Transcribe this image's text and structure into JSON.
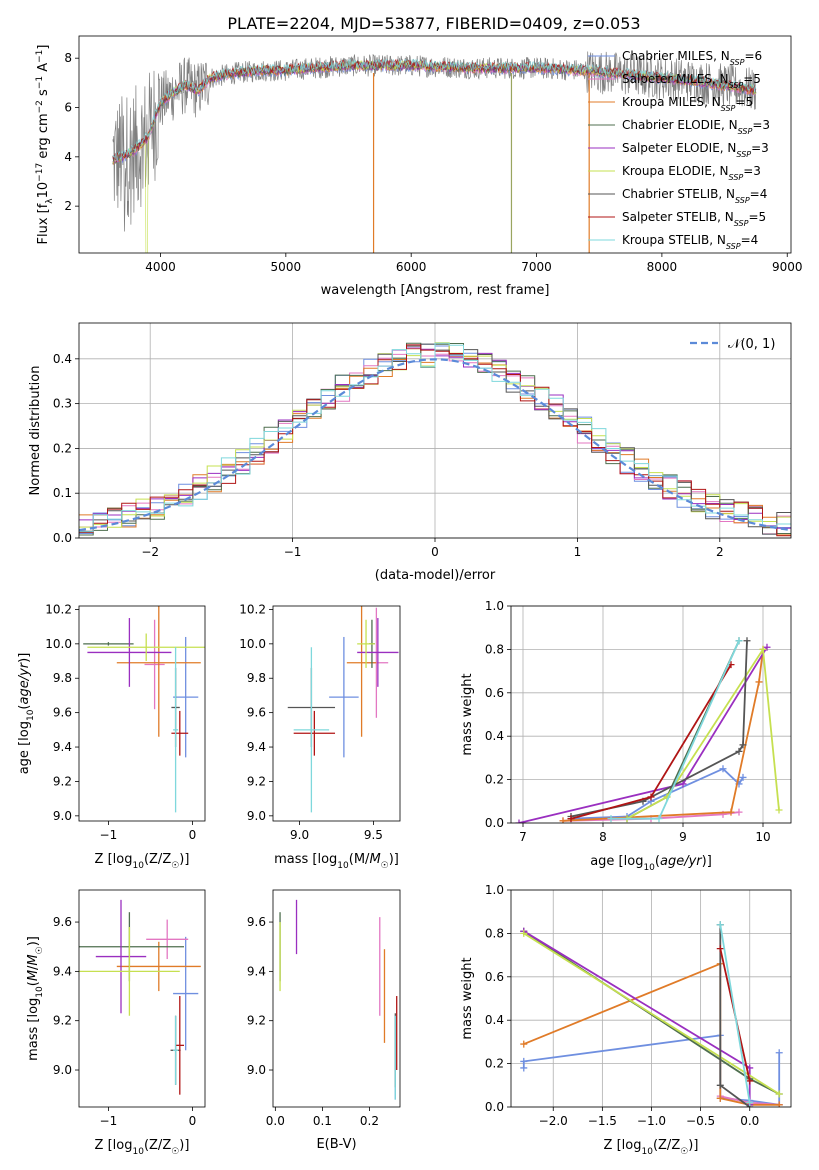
{
  "title": "PLATE=2204, MJD=53877, FIBERID=0409, z=0.053",
  "colors": {
    "Chabrier MILES": "#6f8fe0",
    "Salpeter MILES": "#e377c2",
    "Kroupa MILES": "#e07b28",
    "Chabrier ELODIE": "#4f6f4f",
    "Salpeter ELODIE": "#9a2fc0",
    "Kroupa ELODIE": "#c6e050",
    "Chabrier STELIB": "#555555",
    "Salpeter STELIB": "#b01515",
    "Kroupa STELIB": "#7fd8dc",
    "data": "#7f7f7f",
    "normal": "#5b8ad8"
  },
  "legend_models": [
    {
      "name": "Chabrier MILES",
      "nssp": "6"
    },
    {
      "name": "Salpeter MILES",
      "nssp": "5"
    },
    {
      "name": "Kroupa MILES",
      "nssp": "5"
    },
    {
      "name": "Chabrier ELODIE",
      "nssp": "3"
    },
    {
      "name": "Salpeter ELODIE",
      "nssp": "3"
    },
    {
      "name": "Kroupa ELODIE",
      "nssp": "3"
    },
    {
      "name": "Chabrier STELIB",
      "nssp": "4"
    },
    {
      "name": "Salpeter STELIB",
      "nssp": "5"
    },
    {
      "name": "Kroupa STELIB",
      "nssp": "4"
    }
  ],
  "chart_data": [
    {
      "id": "spectrum",
      "type": "line",
      "title": "PLATE=2204, MJD=53877, FIBERID=0409, z=0.053",
      "xlabel": "wavelength [Angstrom, rest frame]",
      "ylabel": "Flux [f_λ 10^-17 erg cm^-2 s^-1 A^-1]",
      "xlim": [
        3350,
        9030
      ],
      "ylim": [
        0.1,
        8.9
      ],
      "xticks": [
        4000,
        5000,
        6000,
        7000,
        8000,
        9000
      ],
      "yticks": [
        2,
        4,
        6,
        8
      ],
      "data_range": [
        3620,
        8750
      ],
      "continuum": {
        "x": [
          3620,
          3700,
          3800,
          3900,
          4000,
          4100,
          4200,
          4300,
          4400,
          4600,
          4800,
          5000,
          5200,
          5500,
          6000,
          6500,
          7000,
          7400,
          7800,
          8200,
          8500,
          8750
        ],
        "y": [
          3.9,
          4.0,
          4.3,
          4.8,
          6.2,
          6.6,
          6.9,
          6.7,
          7.2,
          7.4,
          7.5,
          7.5,
          7.6,
          7.7,
          7.7,
          7.6,
          7.6,
          7.5,
          7.3,
          7.1,
          6.9,
          6.7
        ]
      },
      "legend": "upper right"
    },
    {
      "id": "residual-histogram",
      "type": "step",
      "xlabel": "(data-model)/error",
      "ylabel": "Normed distribution",
      "xlim": [
        -2.5,
        2.5
      ],
      "ylim": [
        0,
        0.48
      ],
      "xticks": [
        -2,
        -1,
        0,
        1,
        2
      ],
      "yticks": [
        0.0,
        0.1,
        0.2,
        0.3,
        0.4
      ],
      "reference_curve": {
        "label": "𝒩(0, 1)",
        "mu": 0,
        "sigma": 1
      },
      "bin_width": 0.1,
      "grid": true
    },
    {
      "id": "age-vs-Z",
      "type": "errorbar",
      "xlabel": "Z [log10(Z/Z☉)]",
      "ylabel": "age [log10(age/yr)]",
      "xlim": [
        -1.35,
        0.15
      ],
      "ylim": [
        8.97,
        10.22
      ],
      "xticks": [
        -1,
        0
      ],
      "yticks": [
        9.0,
        9.2,
        9.4,
        9.6,
        9.8,
        10.0,
        10.2
      ],
      "points": [
        {
          "model": "Chabrier MILES",
          "x": -0.08,
          "y": 9.69,
          "xerr": 0.15,
          "yerr": 0.35
        },
        {
          "model": "Salpeter MILES",
          "x": -0.45,
          "y": 9.88,
          "xerr": 0.12,
          "yerr": 0.26
        },
        {
          "model": "Kroupa MILES",
          "x": -0.4,
          "y": 9.89,
          "xerr": 0.5,
          "yerr": 0.43
        },
        {
          "model": "Chabrier ELODIE",
          "x": -1.0,
          "y": 10.0,
          "xerr": 0.3,
          "yerr": 0.01
        },
        {
          "model": "Salpeter ELODIE",
          "x": -0.75,
          "y": 9.95,
          "xerr": 0.5,
          "yerr": 0.2
        },
        {
          "model": "Kroupa ELODIE",
          "x": -0.55,
          "y": 9.98,
          "xerr": 0.7,
          "yerr": 0.08
        },
        {
          "model": "Chabrier STELIB",
          "x": -0.2,
          "y": 9.63,
          "xerr": 0.05,
          "yerr": 0.23
        },
        {
          "model": "Salpeter STELIB",
          "x": -0.15,
          "y": 9.48,
          "xerr": 0.1,
          "yerr": 0.13
        },
        {
          "model": "Kroupa STELIB",
          "x": -0.2,
          "y": 9.5,
          "xerr": 0.03,
          "yerr": 0.48
        }
      ]
    },
    {
      "id": "age-vs-mass",
      "type": "errorbar",
      "xlabel": "mass [log10(M/M☉)]",
      "ylabel": "",
      "xlim": [
        8.82,
        9.68
      ],
      "ylim": [
        8.97,
        10.22
      ],
      "xticks": [
        9.0,
        9.5
      ],
      "yticks": [
        9.0,
        9.2,
        9.4,
        9.6,
        9.8,
        10.0,
        10.2
      ],
      "points": [
        {
          "model": "Chabrier MILES",
          "x": 9.3,
          "y": 9.69,
          "xerr": 0.1,
          "yerr": 0.35
        },
        {
          "model": "Salpeter MILES",
          "x": 9.52,
          "y": 9.89,
          "xerr": 0.08,
          "yerr": 0.32
        },
        {
          "model": "Kroupa MILES",
          "x": 9.42,
          "y": 9.89,
          "xerr": 0.1,
          "yerr": 0.43
        },
        {
          "model": "Chabrier ELODIE",
          "x": 9.49,
          "y": 10.0,
          "xerr": 0.02,
          "yerr": 0.14
        },
        {
          "model": "Salpeter ELODIE",
          "x": 9.53,
          "y": 9.95,
          "xerr": 0.14,
          "yerr": 0.2
        },
        {
          "model": "Kroupa ELODIE",
          "x": 9.45,
          "y": 10.0,
          "xerr": 0.06,
          "yerr": 0.14
        },
        {
          "model": "Chabrier STELIB",
          "x": 9.08,
          "y": 9.63,
          "xerr": 0.16,
          "yerr": 0.23
        },
        {
          "model": "Salpeter STELIB",
          "x": 9.1,
          "y": 9.48,
          "xerr": 0.14,
          "yerr": 0.13
        },
        {
          "model": "Kroupa STELIB",
          "x": 9.08,
          "y": 9.5,
          "xerr": 0.12,
          "yerr": 0.48
        }
      ]
    },
    {
      "id": "mass-weight-vs-age",
      "type": "line",
      "xlabel": "age [log10(age/yr)]",
      "ylabel": "mass weight",
      "xlim": [
        6.85,
        10.35
      ],
      "ylim": [
        0,
        1
      ],
      "xticks": [
        7,
        8,
        9,
        10
      ],
      "yticks": [
        0.0,
        0.2,
        0.4,
        0.6,
        0.8,
        1.0
      ],
      "grid": true,
      "series": [
        {
          "model": "Chabrier MILES",
          "x": [
            7.6,
            8.3,
            8.6,
            9.5,
            9.7,
            9.75
          ],
          "y": [
            0.02,
            0.03,
            0.1,
            0.25,
            0.18,
            0.21
          ]
        },
        {
          "model": "Salpeter MILES",
          "x": [
            7.5,
            8.6,
            9.5,
            9.7
          ],
          "y": [
            0.01,
            0.02,
            0.04,
            0.05
          ]
        },
        {
          "model": "Kroupa MILES",
          "x": [
            7.5,
            9.6,
            9.95,
            10.0
          ],
          "y": [
            0.01,
            0.05,
            0.65,
            0.8
          ]
        },
        {
          "model": "Chabrier ELODIE",
          "x": [
            8.3,
            8.8,
            9.7
          ],
          "y": [
            0.02,
            0.12,
            0.84
          ]
        },
        {
          "model": "Salpeter ELODIE",
          "x": [
            6.95,
            9.0,
            10.05
          ],
          "y": [
            0.0,
            0.18,
            0.81
          ]
        },
        {
          "model": "Kroupa ELODIE",
          "x": [
            8.3,
            8.8,
            10.0,
            10.2
          ],
          "y": [
            0.02,
            0.12,
            0.8,
            0.06
          ]
        },
        {
          "model": "Chabrier STELIB",
          "x": [
            7.6,
            8.5,
            9.7,
            9.75,
            9.8
          ],
          "y": [
            0.03,
            0.1,
            0.33,
            0.36,
            0.84
          ]
        },
        {
          "model": "Salpeter STELIB",
          "x": [
            7.6,
            8.6,
            9.6
          ],
          "y": [
            0.02,
            0.12,
            0.73
          ]
        },
        {
          "model": "Kroupa STELIB",
          "x": [
            8.1,
            8.7,
            9.7
          ],
          "y": [
            0.02,
            0.02,
            0.84
          ]
        }
      ]
    },
    {
      "id": "mass-vs-Z",
      "type": "errorbar",
      "xlabel": "Z [log10(Z/Z☉)]",
      "ylabel": "mass [log10(M/M☉)]",
      "xlim": [
        -1.35,
        0.15
      ],
      "ylim": [
        8.85,
        9.73
      ],
      "xticks": [
        -1,
        0
      ],
      "yticks": [
        9.0,
        9.2,
        9.4,
        9.6
      ],
      "points": [
        {
          "model": "Chabrier MILES",
          "x": -0.08,
          "y": 9.31,
          "xerr": 0.15,
          "yerr": 0.23
        },
        {
          "model": "Salpeter MILES",
          "x": -0.3,
          "y": 9.53,
          "xerr": 0.25,
          "yerr": 0.08
        },
        {
          "model": "Kroupa MILES",
          "x": -0.4,
          "y": 9.42,
          "xerr": 0.5,
          "yerr": 0.1
        },
        {
          "model": "Chabrier ELODIE",
          "x": -0.75,
          "y": 9.5,
          "xerr": 0.65,
          "yerr": 0.14
        },
        {
          "model": "Salpeter ELODIE",
          "x": -0.85,
          "y": 9.46,
          "xerr": 0.3,
          "yerr": 0.23
        },
        {
          "model": "Kroupa ELODIE",
          "x": -0.75,
          "y": 9.4,
          "xerr": 0.6,
          "yerr": 0.18
        },
        {
          "model": "Chabrier STELIB",
          "x": -0.2,
          "y": 9.08,
          "xerr": 0.06,
          "yerr": 0.14
        },
        {
          "model": "Salpeter STELIB",
          "x": -0.15,
          "y": 9.1,
          "xerr": 0.05,
          "yerr": 0.2
        },
        {
          "model": "Kroupa STELIB",
          "x": -0.2,
          "y": 9.08,
          "xerr": 0.03,
          "yerr": 0.14
        }
      ]
    },
    {
      "id": "mass-vs-ebv",
      "type": "errorbar",
      "xlabel": "E(B-V)",
      "ylabel": "",
      "xlim": [
        -0.005,
        0.265
      ],
      "ylim": [
        8.85,
        9.73
      ],
      "xticks": [
        0.0,
        0.1,
        0.2
      ],
      "yticks": [
        9.0,
        9.2,
        9.4,
        9.6
      ],
      "points": [
        {
          "model": "Chabrier MILES",
          "x": 0.255,
          "y": 9.05,
          "xerr": 0,
          "yerr": 0.17
        },
        {
          "model": "Salpeter MILES",
          "x": 0.222,
          "y": 9.42,
          "xerr": 0,
          "yerr": 0.2
        },
        {
          "model": "Kroupa MILES",
          "x": 0.232,
          "y": 9.3,
          "xerr": 0,
          "yerr": 0.19
        },
        {
          "model": "Chabrier ELODIE",
          "x": 0.01,
          "y": 9.5,
          "xerr": 0,
          "yerr": 0.14
        },
        {
          "model": "Salpeter ELODIE",
          "x": 0.045,
          "y": 9.58,
          "xerr": 0,
          "yerr": 0.11
        },
        {
          "model": "Kroupa ELODIE",
          "x": 0.01,
          "y": 9.46,
          "xerr": 0,
          "yerr": 0.14
        },
        {
          "model": "Chabrier STELIB",
          "x": 0.255,
          "y": 9.08,
          "xerr": 0,
          "yerr": 0.15
        },
        {
          "model": "Salpeter STELIB",
          "x": 0.258,
          "y": 9.15,
          "xerr": 0,
          "yerr": 0.15
        },
        {
          "model": "Kroupa STELIB",
          "x": 0.255,
          "y": 9.05,
          "xerr": 0,
          "yerr": 0.17
        }
      ]
    },
    {
      "id": "mass-weight-vs-Z",
      "type": "line",
      "xlabel": "Z [log10(Z/Z☉)]",
      "ylabel": "mass weight",
      "xlim": [
        -2.43,
        0.42
      ],
      "ylim": [
        0,
        1
      ],
      "xticks": [
        -2.0,
        -1.5,
        -1.0,
        -0.5,
        0.0
      ],
      "yticks": [
        0.0,
        0.2,
        0.4,
        0.6,
        0.8,
        1.0
      ],
      "grid": true,
      "series": [
        {
          "model": "Chabrier MILES",
          "x": [
            -2.3,
            -2.3,
            -0.3,
            -0.3,
            0.0,
            0.3,
            0.3
          ],
          "y": [
            0.18,
            0.21,
            0.33,
            0.04,
            0.03,
            0.01,
            0.25
          ]
        },
        {
          "model": "Salpeter MILES",
          "x": [
            -0.3,
            0.0,
            0.3
          ],
          "y": [
            0.05,
            0.02,
            0.01
          ]
        },
        {
          "model": "Kroupa MILES",
          "x": [
            -2.3,
            -0.3,
            -0.3,
            0.0,
            0.3
          ],
          "y": [
            0.29,
            0.66,
            0.04,
            0.01,
            0.01
          ]
        },
        {
          "model": "Chabrier ELODIE",
          "x": [
            -2.3,
            0.0,
            0.3
          ],
          "y": [
            0.81,
            0.13,
            0.06
          ]
        },
        {
          "model": "Salpeter ELODIE",
          "x": [
            -2.3,
            0.0,
            0.0
          ],
          "y": [
            0.81,
            0.18,
            0.01
          ]
        },
        {
          "model": "Kroupa ELODIE",
          "x": [
            -2.3,
            0.3
          ],
          "y": [
            0.8,
            0.06
          ]
        },
        {
          "model": "Chabrier STELIB",
          "x": [
            -0.3,
            -0.3,
            0.0
          ],
          "y": [
            0.84,
            0.1,
            0.0
          ]
        },
        {
          "model": "Salpeter STELIB",
          "x": [
            -0.3,
            0.0
          ],
          "y": [
            0.73,
            0.12
          ]
        },
        {
          "model": "Kroupa STELIB",
          "x": [
            -0.3,
            0.0
          ],
          "y": [
            0.84,
            0.02
          ]
        }
      ]
    }
  ]
}
